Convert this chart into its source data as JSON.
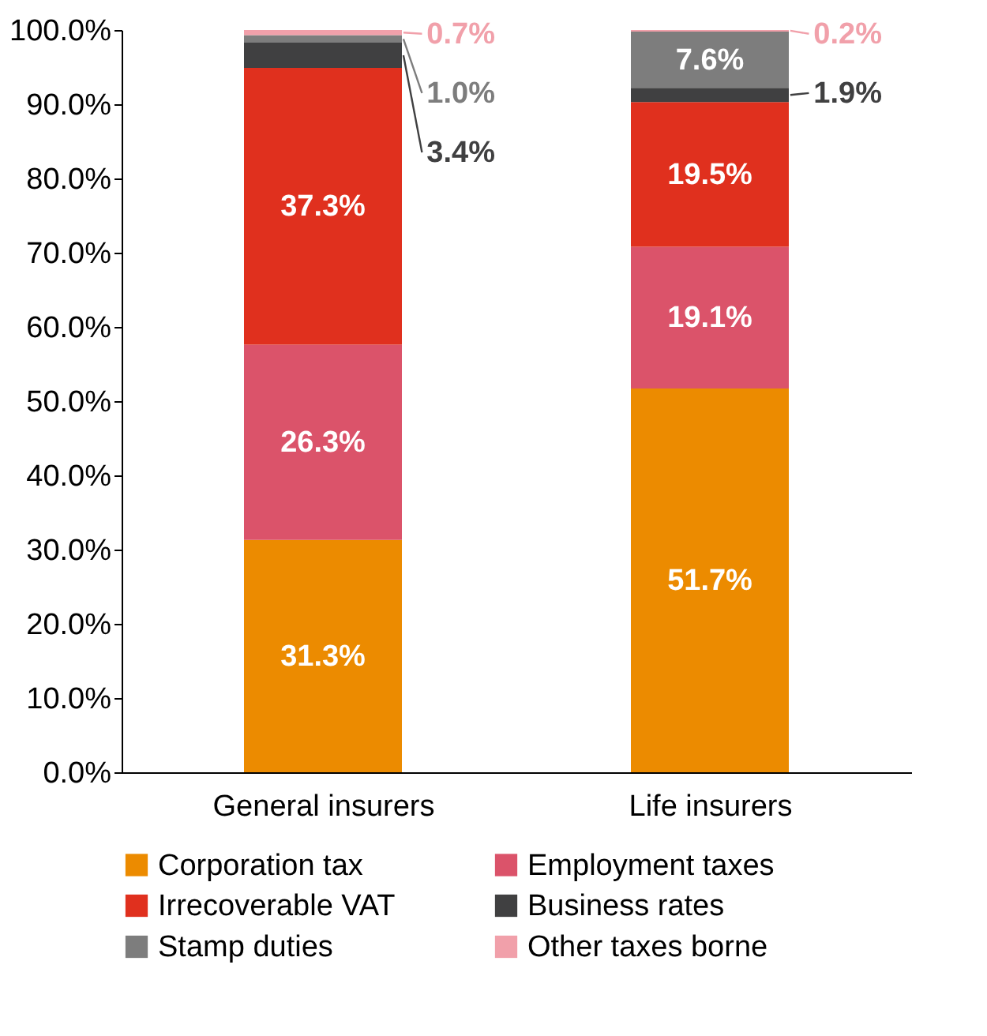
{
  "chart_data": {
    "type": "bar",
    "stacked": true,
    "categories": [
      "General insurers",
      "Life insurers"
    ],
    "series": [
      {
        "name": "Corporation tax",
        "color": "#ec8b00",
        "values": [
          31.3,
          51.7
        ],
        "value_labels": [
          "31.3%",
          "51.7%"
        ]
      },
      {
        "name": "Employment taxes",
        "color": "#db536a",
        "values": [
          26.3,
          19.1
        ],
        "value_labels": [
          "26.3%",
          "19.1%"
        ]
      },
      {
        "name": "Irrecoverable VAT",
        "color": "#e0301e",
        "values": [
          37.3,
          19.5
        ],
        "value_labels": [
          "37.3%",
          "19.5%"
        ]
      },
      {
        "name": "Business rates",
        "color": "#404041",
        "values": [
          3.4,
          1.9
        ],
        "value_labels": [
          "3.4%",
          "1.9%"
        ]
      },
      {
        "name": "Stamp duties",
        "color": "#7d7d7d",
        "values": [
          1.0,
          7.6
        ],
        "value_labels": [
          "1.0%",
          "7.6%"
        ]
      },
      {
        "name": "Other taxes borne",
        "color": "#f1a0aa",
        "values": [
          0.7,
          0.2
        ],
        "value_labels": [
          "0.7%",
          "0.2%"
        ]
      }
    ],
    "ylim": [
      0,
      100
    ],
    "yticks": [
      {
        "value": 0,
        "label": "0.0%"
      },
      {
        "value": 10,
        "label": "10.0%"
      },
      {
        "value": 20,
        "label": "20.0%"
      },
      {
        "value": 30,
        "label": "30.0%"
      },
      {
        "value": 40,
        "label": "40.0%"
      },
      {
        "value": 50,
        "label": "50.0%"
      },
      {
        "value": 60,
        "label": "60.0%"
      },
      {
        "value": 70,
        "label": "70.0%"
      },
      {
        "value": 80,
        "label": "80.0%"
      },
      {
        "value": 90,
        "label": "90.0%"
      },
      {
        "value": 100,
        "label": "100.0%"
      }
    ],
    "grid": false,
    "legend": "bottom"
  }
}
